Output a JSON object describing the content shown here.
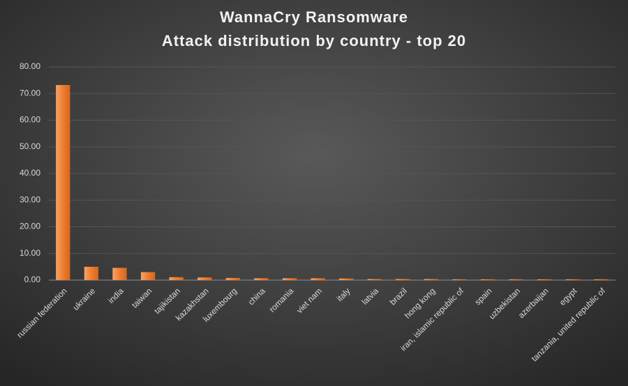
{
  "chart_data": {
    "type": "bar",
    "title": "WannaCry  Ransomware",
    "subtitle": "Attack distribution  by country  - top 20",
    "categories": [
      "russian federation",
      "ukraine",
      "india",
      "taiwan",
      "tajikistan",
      "kazakhstan",
      "luxembourg",
      "china",
      "romania",
      "viet nam",
      "italy",
      "latvia",
      "brazil",
      "hong kong",
      "iran, islamic republic of",
      "spain",
      "uzbekistan",
      "azerbaijan",
      "egypt",
      "tanzania, united republic of"
    ],
    "values": [
      73.2,
      5.0,
      4.6,
      3.0,
      1.1,
      1.0,
      0.8,
      0.7,
      0.7,
      0.7,
      0.6,
      0.4,
      0.4,
      0.4,
      0.3,
      0.3,
      0.3,
      0.3,
      0.3,
      0.3
    ],
    "color": "#ed7d31",
    "ylim": [
      0,
      80
    ],
    "yticks": [
      {
        "value": 0,
        "label": "0.00"
      },
      {
        "value": 10,
        "label": "10.00"
      },
      {
        "value": 20,
        "label": "20.00"
      },
      {
        "value": 30,
        "label": "30.00"
      },
      {
        "value": 40,
        "label": "40.00"
      },
      {
        "value": 50,
        "label": "50.00"
      },
      {
        "value": 60,
        "label": "60.00"
      },
      {
        "value": 70,
        "label": "70.00"
      },
      {
        "value": 80,
        "label": "80.00"
      }
    ],
    "grid": true
  }
}
